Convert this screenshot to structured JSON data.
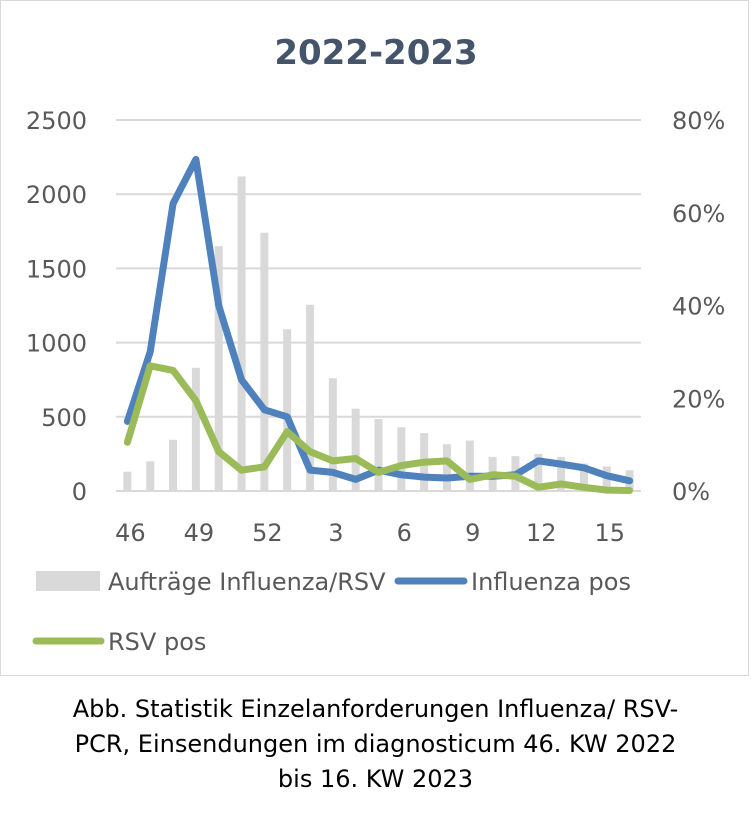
{
  "chart_data": {
    "type": "bar+line",
    "title": "2022-2023",
    "x_tick_labels": [
      "46",
      "49",
      "52",
      "3",
      "6",
      "9",
      "12",
      "15"
    ],
    "categories": [
      "46",
      "47",
      "48",
      "49",
      "50",
      "51",
      "52",
      "1",
      "2",
      "3",
      "4",
      "5",
      "6",
      "7",
      "8",
      "9",
      "10",
      "11",
      "12",
      "13",
      "14",
      "15",
      "16"
    ],
    "y_left": {
      "min": 0,
      "max": 2500,
      "ticks": [
        "0",
        "500",
        "1000",
        "1500",
        "2000",
        "2500"
      ]
    },
    "y_right": {
      "min": 0,
      "max": 0.8,
      "ticks": [
        "0%",
        "20%",
        "40%",
        "60%",
        "80%"
      ]
    },
    "grid": true,
    "legend_position": "bottom",
    "series": [
      {
        "name": "Aufträge Influenza/RSV",
        "type": "bar",
        "axis": "left",
        "color": "#d9d9d9",
        "values": [
          130,
          200,
          345,
          830,
          1650,
          2120,
          1740,
          1090,
          1255,
          760,
          555,
          485,
          430,
          390,
          315,
          340,
          230,
          235,
          250,
          230,
          185,
          165,
          140
        ]
      },
      {
        "name": "Influenza pos",
        "type": "line",
        "axis": "right",
        "color": "#4f81bd",
        "values": [
          0.15,
          0.3,
          0.62,
          0.715,
          0.4,
          0.24,
          0.175,
          0.16,
          0.045,
          0.04,
          0.025,
          0.045,
          0.035,
          0.03,
          0.028,
          0.032,
          0.032,
          0.035,
          0.065,
          0.058,
          0.05,
          0.033,
          0.022
        ]
      },
      {
        "name": "RSV pos",
        "type": "line",
        "axis": "right",
        "color": "#9bbb59",
        "values": [
          0.105,
          0.27,
          0.26,
          0.195,
          0.085,
          0.045,
          0.052,
          0.128,
          0.085,
          0.065,
          0.07,
          0.04,
          0.055,
          0.062,
          0.065,
          0.025,
          0.035,
          0.032,
          0.008,
          0.015,
          0.008,
          0.002,
          0.001
        ]
      }
    ]
  },
  "caption": {
    "line1": "Abb. Statistik Einzelanforderungen Influenza/ RSV-",
    "line2": "PCR, Einsendungen im diagnosticum 46. KW 2022",
    "line3": "bis 16. KW 2023"
  }
}
